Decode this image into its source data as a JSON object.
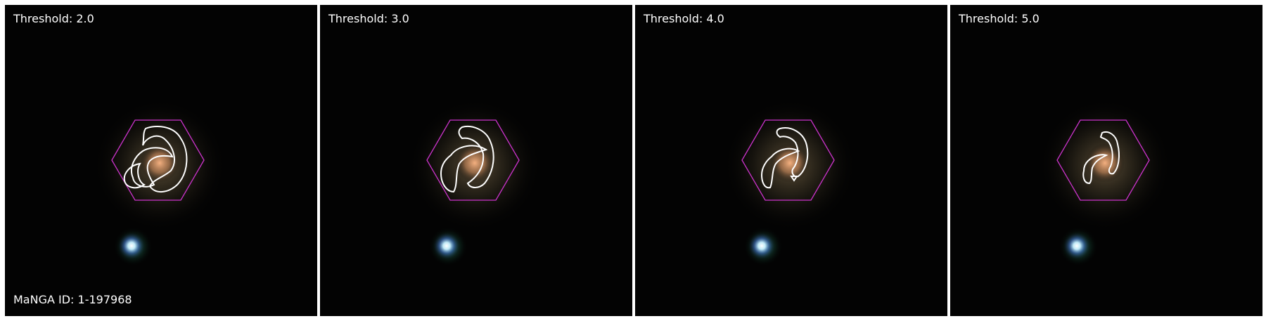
{
  "galaxy": {
    "manga_id_label": "MaNGA ID: 1-197968"
  },
  "panels": [
    {
      "threshold_label": "Threshold: 2.0",
      "threshold": 2.0
    },
    {
      "threshold_label": "Threshold: 3.0",
      "threshold": 3.0
    },
    {
      "threshold_label": "Threshold: 4.0",
      "threshold": 4.0
    },
    {
      "threshold_label": "Threshold: 5.0",
      "threshold": 5.0
    }
  ],
  "colors": {
    "background": "#000000",
    "hexagon": "#cc33cc",
    "contour": "#ffffff",
    "label_text": "#ffffff",
    "galaxy_core": "#e8a070",
    "star": "#dff8ff"
  }
}
